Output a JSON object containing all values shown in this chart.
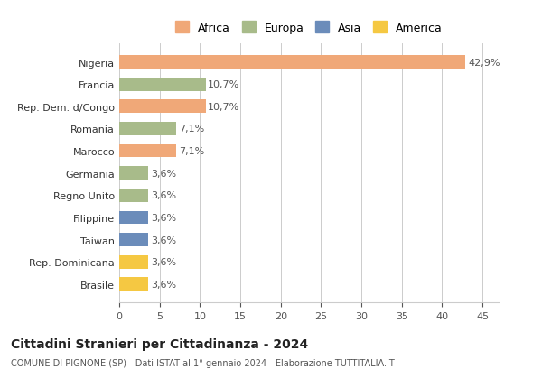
{
  "categories": [
    "Brasile",
    "Rep. Dominicana",
    "Taiwan",
    "Filippine",
    "Regno Unito",
    "Germania",
    "Marocco",
    "Romania",
    "Rep. Dem. d/Congo",
    "Francia",
    "Nigeria"
  ],
  "values": [
    3.6,
    3.6,
    3.6,
    3.6,
    3.6,
    3.6,
    7.1,
    7.1,
    10.7,
    10.7,
    42.9
  ],
  "labels": [
    "3,6%",
    "3,6%",
    "3,6%",
    "3,6%",
    "3,6%",
    "3,6%",
    "7,1%",
    "7,1%",
    "10,7%",
    "10,7%",
    "42,9%"
  ],
  "colors": [
    "#f5c842",
    "#f5c842",
    "#6b8cba",
    "#6b8cba",
    "#a8bb8a",
    "#a8bb8a",
    "#f0a878",
    "#a8bb8a",
    "#f0a878",
    "#a8bb8a",
    "#f0a878"
  ],
  "continent_colors": {
    "Africa": "#f0a878",
    "Europa": "#a8bb8a",
    "Asia": "#6b8cba",
    "America": "#f5c842"
  },
  "legend_labels": [
    "Africa",
    "Europa",
    "Asia",
    "America"
  ],
  "xlim": [
    0,
    47
  ],
  "xticks": [
    0,
    5,
    10,
    15,
    20,
    25,
    30,
    35,
    40,
    45
  ],
  "title": "Cittadini Stranieri per Cittadinanza - 2024",
  "subtitle": "COMUNE DI PIGNONE (SP) - Dati ISTAT al 1° gennaio 2024 - Elaborazione TUTTITALIA.IT",
  "bg_color": "#ffffff",
  "grid_color": "#cccccc",
  "bar_height": 0.6
}
